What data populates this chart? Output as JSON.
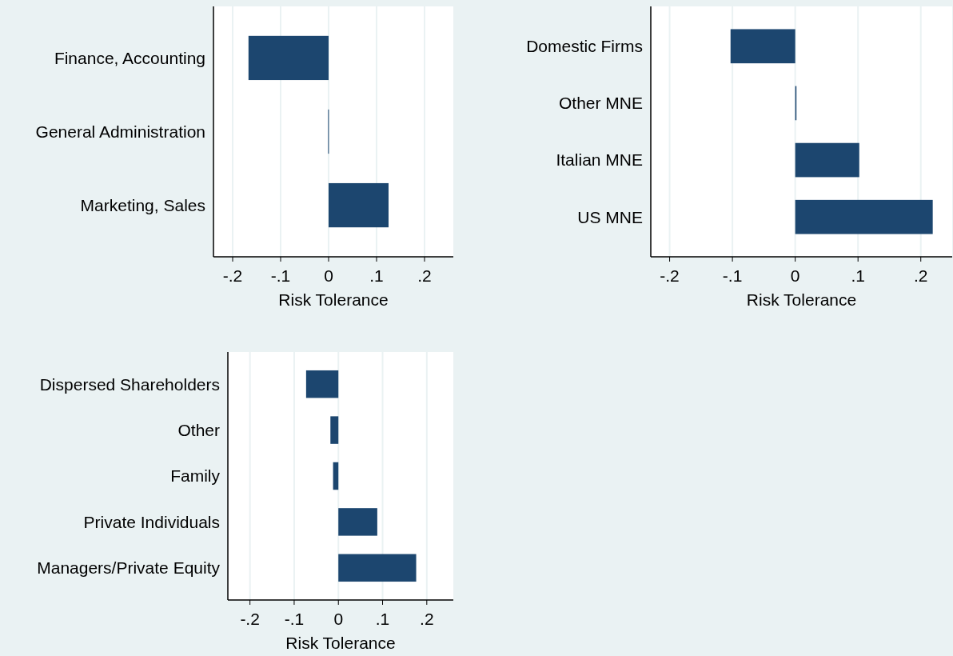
{
  "chart_data": [
    {
      "type": "bar",
      "orientation": "horizontal",
      "categories": [
        "Finance, Accounting",
        "General Administration",
        "Marketing, Sales"
      ],
      "values": [
        -0.167,
        -0.001,
        0.125
      ],
      "color": "#1c466f",
      "xlabel": "Risk Tolerance",
      "xlim": [
        -0.24,
        0.26
      ],
      "xticks": [
        {
          "value": -0.2,
          "label": "-.2"
        },
        {
          "value": -0.1,
          "label": "-.1"
        },
        {
          "value": 0,
          "label": "0"
        },
        {
          "value": 0.1,
          "label": ".1"
        },
        {
          "value": 0.2,
          "label": ".2"
        }
      ],
      "grid": "x"
    },
    {
      "type": "bar",
      "orientation": "horizontal",
      "categories": [
        "Domestic Firms",
        "Other MNE",
        "Italian MNE",
        "US MNE"
      ],
      "values": [
        -0.103,
        0.002,
        0.102,
        0.219
      ],
      "color": "#1c466f",
      "xlabel": "Risk Tolerance",
      "xlim": [
        -0.23,
        0.25
      ],
      "xticks": [
        {
          "value": -0.2,
          "label": "-.2"
        },
        {
          "value": -0.1,
          "label": "-.1"
        },
        {
          "value": 0,
          "label": "0"
        },
        {
          "value": 0.1,
          "label": ".1"
        },
        {
          "value": 0.2,
          "label": ".2"
        }
      ],
      "grid": "x"
    },
    {
      "type": "bar",
      "orientation": "horizontal",
      "categories": [
        "Dispersed Shareholders",
        "Other",
        "Family",
        "Private Individuals",
        "Managers/Private Equity"
      ],
      "values": [
        -0.073,
        -0.018,
        -0.012,
        0.088,
        0.176
      ],
      "color": "#1c466f",
      "xlabel": "Risk Tolerance",
      "xlim": [
        -0.25,
        0.26
      ],
      "xticks": [
        {
          "value": -0.2,
          "label": "-.2"
        },
        {
          "value": -0.1,
          "label": "-.1"
        },
        {
          "value": 0,
          "label": "0"
        },
        {
          "value": 0.1,
          "label": ".1"
        },
        {
          "value": 0.2,
          "label": ".2"
        }
      ],
      "grid": "x"
    }
  ]
}
